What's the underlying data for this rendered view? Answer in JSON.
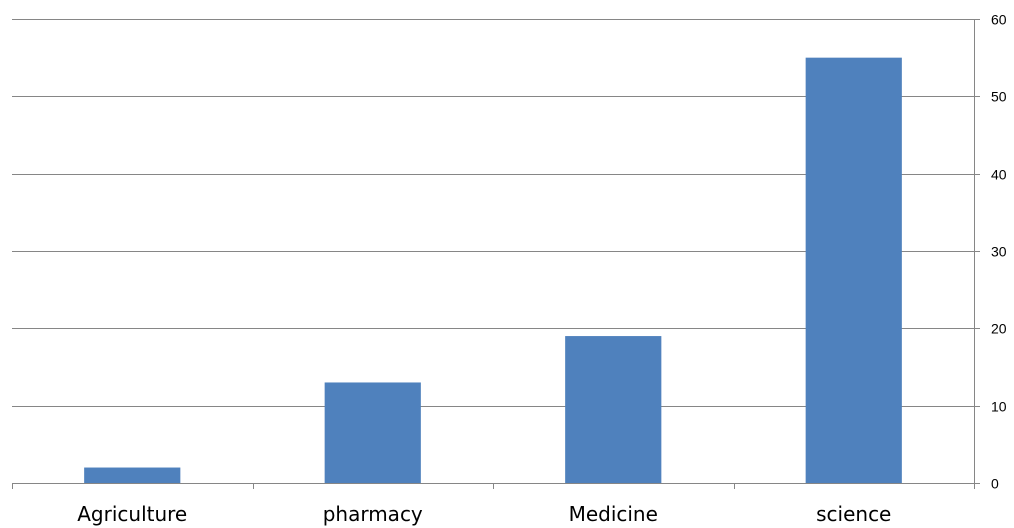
{
  "chart_data": {
    "type": "bar",
    "title": "",
    "xlabel": "",
    "ylabel": "",
    "categories": [
      "Agriculture",
      "pharmacy",
      "Medicine",
      "science"
    ],
    "values": [
      2,
      13,
      19,
      55
    ],
    "ylim": [
      0,
      60
    ],
    "yticks": [
      0,
      10,
      20,
      30,
      40,
      50,
      60
    ],
    "y_axis_side": "right",
    "grid": true,
    "legend": "none",
    "bar_color": "#4F81BD",
    "grid_color": "#868686"
  }
}
